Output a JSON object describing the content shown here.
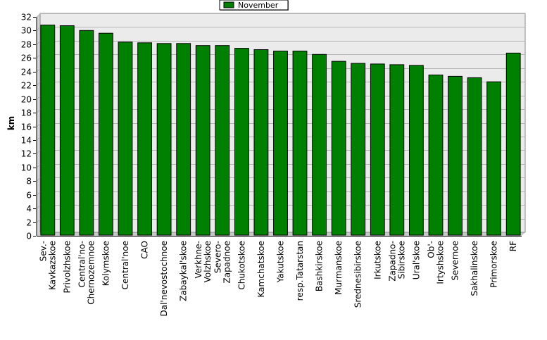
{
  "chart_data": {
    "type": "bar",
    "title": "",
    "xlabel": "",
    "ylabel": "km",
    "ylim": [
      0,
      32
    ],
    "ytick_step": 2,
    "grid": true,
    "legend_position": "top-center",
    "colors": {
      "bar": "#008000",
      "bar_edge": "#000000",
      "plot_bg": "#ebebeb",
      "grid": "#b4b4b4"
    },
    "categories": [
      "Sev.-Kavkazskoe",
      "Privolzhskoe",
      "Central'no-Chernozemnoe",
      "Kolymskoe",
      "Central'noe",
      "CAO",
      "Dal'nevostochnoe",
      "Zabaykal'skoe",
      "Verkhne-Volzhskoe",
      "Severo-Zapadnoe",
      "Chukotskoe",
      "Kamchatskoe",
      "Yakutskoe",
      "resp.Tatarstan",
      "Bashkirskoe",
      "Murmanskoe",
      "Srednesibirskoe",
      "Irkutskoe",
      "Zapadno-Sibirskoe",
      "Ural'skoe",
      "Ob'-Irtyshskoe",
      "Severnoe",
      "Sakhalinskoe",
      "Primorskoe",
      "RF"
    ],
    "category_label_lines": [
      [
        "Sev.-",
        "Kavkazskoe"
      ],
      [
        "Privolzhskoe"
      ],
      [
        "Central'no-",
        "Chernozemnoe"
      ],
      [
        "Kolymskoe"
      ],
      [
        "Central'noe"
      ],
      [
        "CAO"
      ],
      [
        "Dal'nevostochnoe"
      ],
      [
        "Zabaykal'skoe"
      ],
      [
        "Verkhne-",
        "Volzhskoe"
      ],
      [
        "Severo-",
        "Zapadnoe"
      ],
      [
        "Chukotskoe"
      ],
      [
        "Kamchatskoe"
      ],
      [
        "Yakutskoe"
      ],
      [
        "resp.Tatarstan"
      ],
      [
        "Bashkirskoe"
      ],
      [
        "Murmanskoe"
      ],
      [
        "Srednesibirskoe"
      ],
      [
        "Irkutskoe"
      ],
      [
        "Zapadno-",
        "Sibirskoe"
      ],
      [
        "Ural'skoe"
      ],
      [
        "Ob'-",
        "Irtyshskoe"
      ],
      [
        "Severnoe"
      ],
      [
        "Sakhalinskoe"
      ],
      [
        "Primorskoe"
      ],
      [
        "RF"
      ]
    ],
    "series": [
      {
        "name": "November",
        "values": [
          30.4,
          30.3,
          29.6,
          29.2,
          27.9,
          27.8,
          27.7,
          27.7,
          27.4,
          27.4,
          27.0,
          26.8,
          26.6,
          26.6,
          26.1,
          25.1,
          24.8,
          24.7,
          24.6,
          24.5,
          23.1,
          22.9,
          22.7,
          22.1,
          26.3
        ]
      }
    ]
  }
}
